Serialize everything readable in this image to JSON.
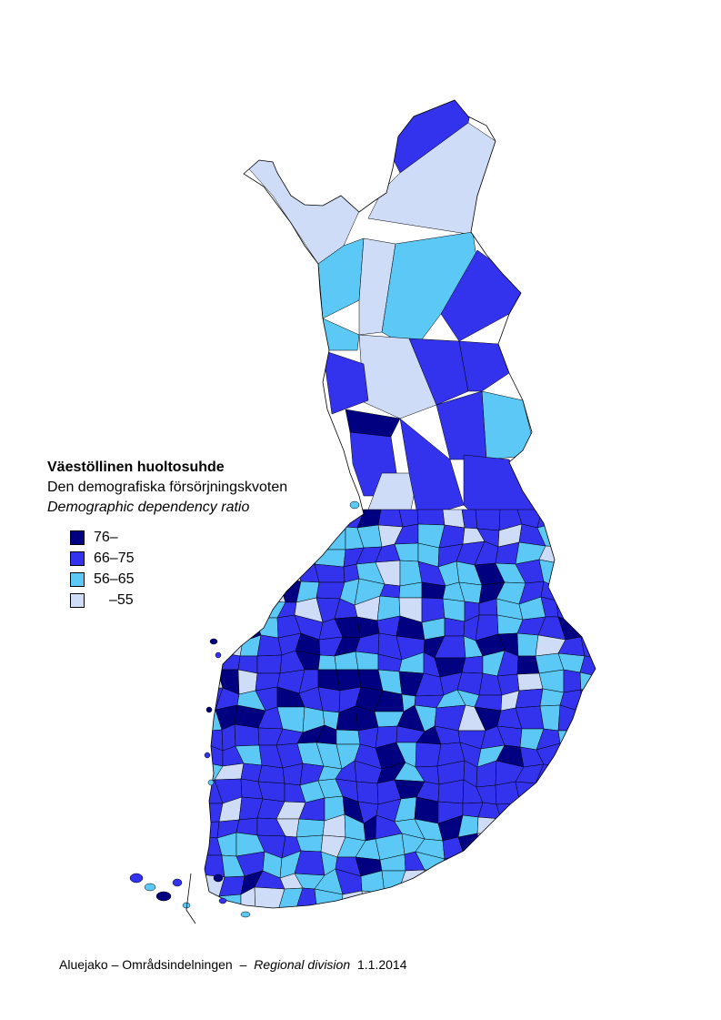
{
  "legend": {
    "title": "Väestöllinen huoltosuhde",
    "subtitle_sv": "Den demografiska försörjningskvoten",
    "subtitle_en": "Demographic dependency ratio",
    "classes": [
      {
        "label": "76–",
        "color": "#000080"
      },
      {
        "label": "66–75",
        "color": "#3333ee"
      },
      {
        "label": "56–65",
        "color": "#5bc8f5"
      },
      {
        "label": "–55",
        "color": "#cfdcf7"
      }
    ]
  },
  "footer": {
    "fi_sv": "Aluejako – Områdsindelningen",
    "separator": "–",
    "en": "Regional division",
    "date": "1.1.2014"
  }
}
